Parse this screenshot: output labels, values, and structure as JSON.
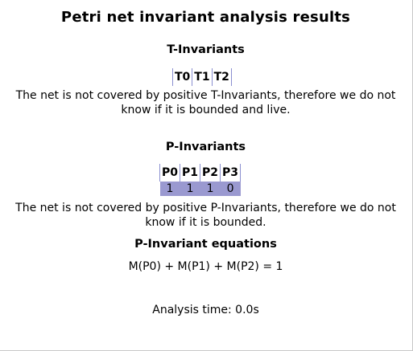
{
  "title": "Petri net invariant analysis results",
  "t_invariants": {
    "heading": "T-Invariants",
    "columns": [
      "T0",
      "T1",
      "T2"
    ],
    "message_line1": "The net is not covered by positive T-Invariants, therefore we do not",
    "message_line2": "know if it is bounded and live."
  },
  "p_invariants": {
    "heading": "P-Invariants",
    "columns": [
      "P0",
      "P1",
      "P2",
      "P3"
    ],
    "rows": [
      [
        "1",
        "1",
        "1",
        "0"
      ]
    ],
    "message_line1": "The net is not covered by positive P-Invariants, therefore we do not",
    "message_line2": "know if it is bounded."
  },
  "equations": {
    "heading": "P-Invariant equations",
    "lines": [
      "M(P0) + M(P1) + M(P2) = 1"
    ]
  },
  "analysis_time": "Analysis time: 0.0s",
  "colors": {
    "row_highlight": "#9a99d0",
    "column_rule": "#8a8fd0"
  }
}
